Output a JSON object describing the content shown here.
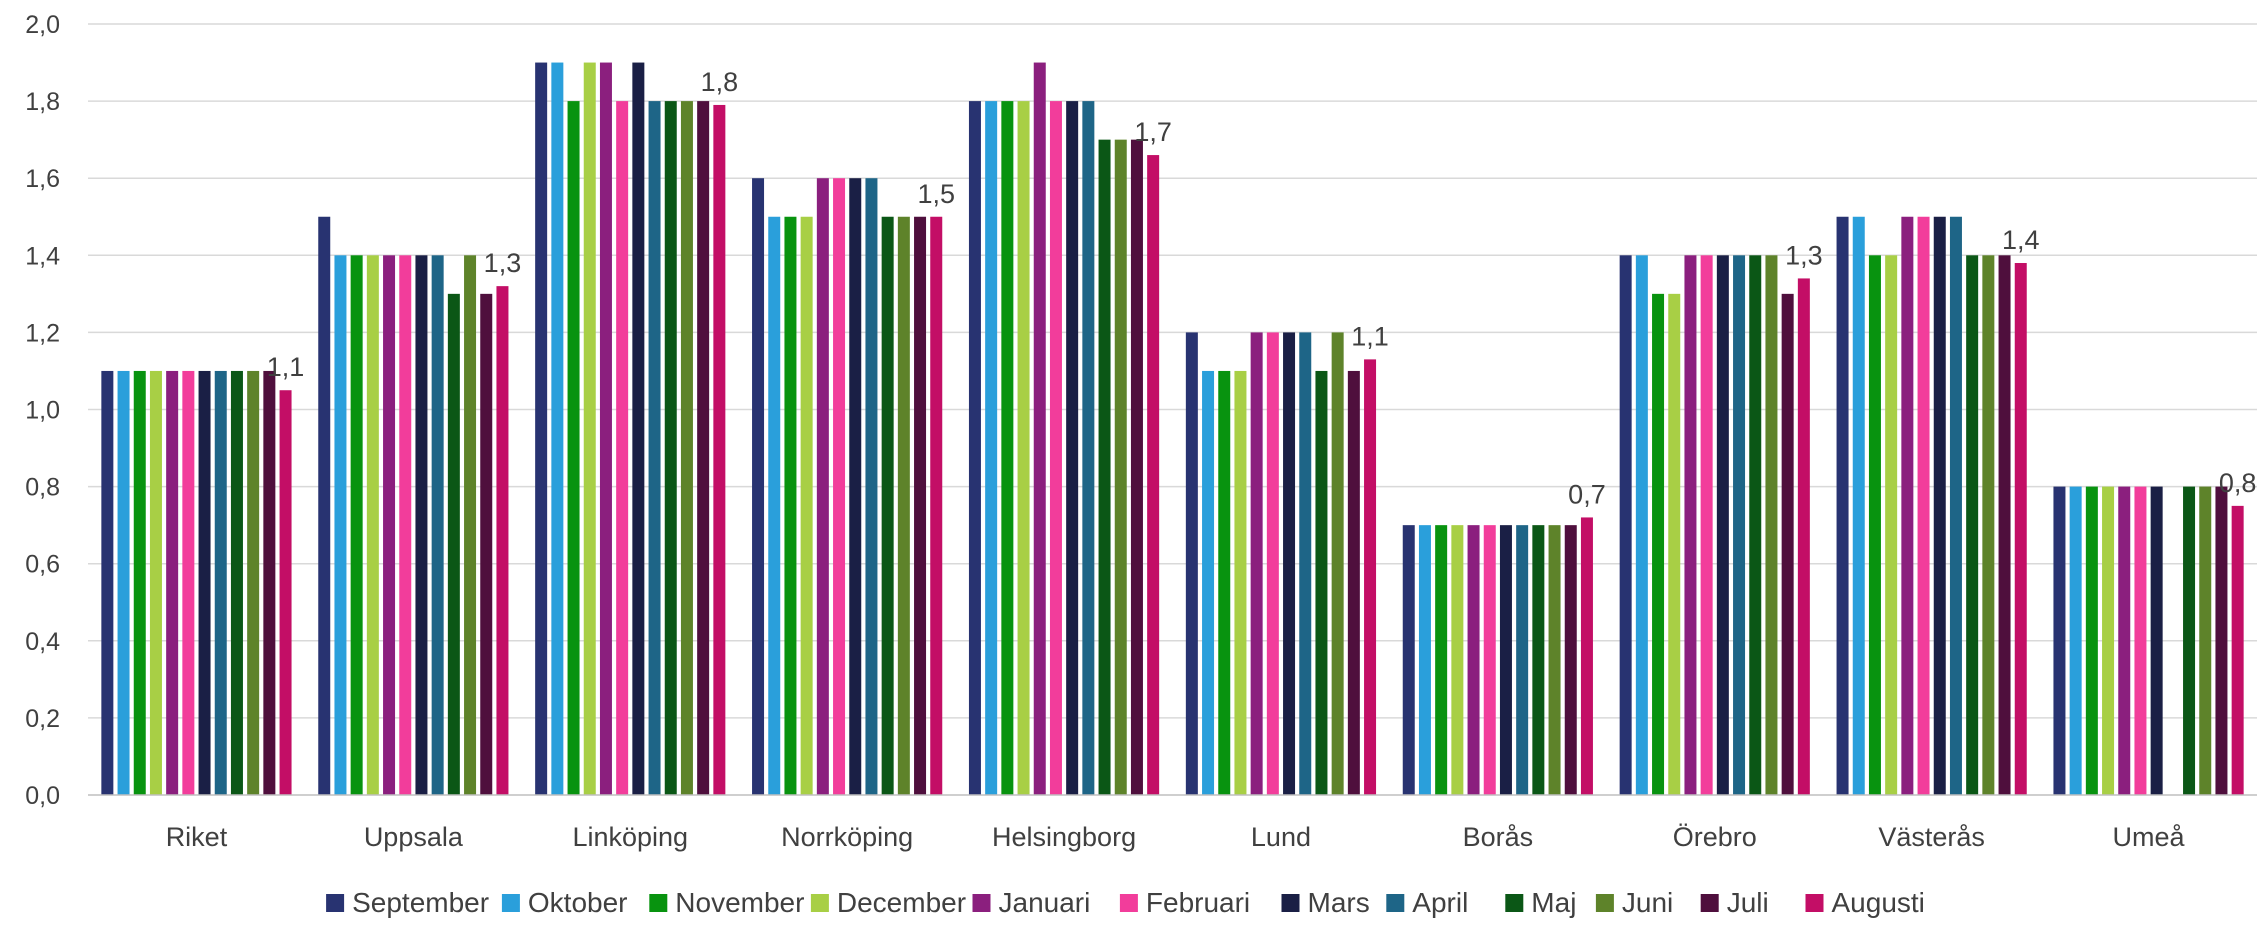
{
  "chart_data": {
    "type": "bar",
    "categories": [
      "Riket",
      "Uppsala",
      "Linköping",
      "Norrköping",
      "Helsingborg",
      "Lund",
      "Borås",
      "Örebro",
      "Västerås",
      "Umeå"
    ],
    "series": [
      {
        "name": "September",
        "color": "#283371",
        "values": [
          1.1,
          1.5,
          1.9,
          1.6,
          1.8,
          1.2,
          0.7,
          1.4,
          1.5,
          0.8
        ]
      },
      {
        "name": "Oktober",
        "color": "#2A9FDB",
        "values": [
          1.1,
          1.4,
          1.9,
          1.5,
          1.8,
          1.1,
          0.7,
          1.4,
          1.5,
          0.8
        ]
      },
      {
        "name": "November",
        "color": "#08930F",
        "values": [
          1.1,
          1.4,
          1.8,
          1.5,
          1.8,
          1.1,
          0.7,
          1.3,
          1.4,
          0.8
        ]
      },
      {
        "name": "December",
        "color": "#A8CF45",
        "values": [
          1.1,
          1.4,
          1.9,
          1.5,
          1.8,
          1.1,
          0.7,
          1.3,
          1.4,
          0.8
        ]
      },
      {
        "name": "Januari",
        "color": "#8B1F7E",
        "values": [
          1.1,
          1.4,
          1.9,
          1.6,
          1.9,
          1.2,
          0.7,
          1.4,
          1.5,
          0.8
        ]
      },
      {
        "name": "Februari",
        "color": "#F23D9B",
        "values": [
          1.1,
          1.4,
          1.8,
          1.6,
          1.8,
          1.2,
          0.7,
          1.4,
          1.5,
          0.8
        ]
      },
      {
        "name": "Mars",
        "color": "#1A1F45",
        "values": [
          1.1,
          1.4,
          1.9,
          1.6,
          1.8,
          1.2,
          0.7,
          1.4,
          1.5,
          0.8
        ]
      },
      {
        "name": "April",
        "color": "#1E6587",
        "values": [
          1.1,
          1.4,
          1.8,
          1.6,
          1.8,
          1.2,
          0.7,
          1.4,
          1.5,
          null
        ]
      },
      {
        "name": "Maj",
        "color": "#0B5716",
        "values": [
          1.1,
          1.3,
          1.8,
          1.5,
          1.7,
          1.1,
          0.7,
          1.4,
          1.4,
          0.8
        ]
      },
      {
        "name": "Juni",
        "color": "#5E832A",
        "values": [
          1.1,
          1.4,
          1.8,
          1.5,
          1.7,
          1.2,
          0.7,
          1.4,
          1.4,
          0.8
        ]
      },
      {
        "name": "Juli",
        "color": "#4F0F3D",
        "values": [
          1.1,
          1.3,
          1.8,
          1.5,
          1.7,
          1.1,
          0.7,
          1.3,
          1.4,
          0.8
        ]
      },
      {
        "name": "Augusti",
        "color": "#C30E66",
        "values": [
          1.05,
          1.32,
          1.79,
          1.5,
          1.66,
          1.13,
          0.72,
          1.34,
          1.38,
          0.75
        ]
      }
    ],
    "data_labels": [
      "1,1",
      "1,3",
      "1,8",
      "1,5",
      "1,7",
      "1,1",
      "0,7",
      "1,3",
      "1,4",
      "0,8"
    ],
    "y_ticks": [
      "0,0",
      "0,2",
      "0,4",
      "0,6",
      "0,8",
      "1,0",
      "1,2",
      "1,4",
      "1,6",
      "1,8",
      "2,0"
    ],
    "ylim": [
      0,
      2.0
    ],
    "grid": true,
    "legend_position": "bottom",
    "gridline_color": "#D9D9D9",
    "axis_color": "#BFBFBF"
  }
}
